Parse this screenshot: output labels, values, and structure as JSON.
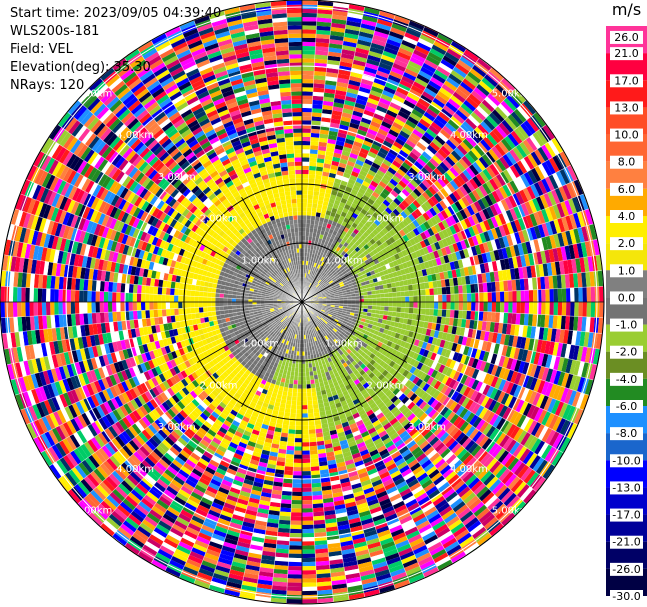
{
  "info": {
    "start_time": "Start time: 2023/09/05 04:39:40",
    "instrument": "WLS200s-181",
    "field": "Field: VEL",
    "elevation": "Elevation(deg): 35.30",
    "nrays": "NRays: 120"
  },
  "colorbar": {
    "unit": "m/s",
    "bins": [
      {
        "label": "26.0",
        "color": "#ff3399"
      },
      {
        "label": "21.0",
        "color": "#ff0040"
      },
      {
        "label": "17.0",
        "color": "#ff1a1a"
      },
      {
        "label": "13.0",
        "color": "#ff4d26"
      },
      {
        "label": "10.0",
        "color": "#ff6633"
      },
      {
        "label": "8.0",
        "color": "#ff8040"
      },
      {
        "label": "6.0",
        "color": "#ffaa00"
      },
      {
        "label": "4.0",
        "color": "#ffee00"
      },
      {
        "label": "2.0",
        "color": "#f5e60a"
      },
      {
        "label": "1.0",
        "color": "#808080"
      },
      {
        "label": "0.0",
        "color": "#737373"
      },
      {
        "label": "-1.0",
        "color": "#9acd32"
      },
      {
        "label": "-2.0",
        "color": "#6b8e23"
      },
      {
        "label": "-4.0",
        "color": "#228b22"
      },
      {
        "label": "-6.0",
        "color": "#1e90ff"
      },
      {
        "label": "-8.0",
        "color": "#1a66cc"
      },
      {
        "label": "-10.0",
        "color": "#0000ff"
      },
      {
        "label": "-13.0",
        "color": "#0000cc"
      },
      {
        "label": "-17.0",
        "color": "#000099"
      },
      {
        "label": "-21.0",
        "color": "#000066"
      },
      {
        "label": "-26.0",
        "color": "#000044"
      },
      {
        "label": "-30.0",
        "color": ""
      }
    ]
  },
  "chart_data": {
    "type": "heatmap",
    "projection": "polar-ppi",
    "n_rays": 120,
    "field": "VEL",
    "units": "m/s",
    "range_ring_labels_km": [
      "1.00km",
      "2.00km",
      "3.00km",
      "4.00km",
      "5.00km"
    ],
    "crosshair": true,
    "pattern": {
      "inner_radius_km": 1.0,
      "inner_values_ms": [
        -1.0,
        0.0,
        1.0
      ],
      "mid_radius_km": 2.2,
      "mid_sector_north_west_ms": 2.0,
      "mid_sector_east_south_ms": -1.0,
      "outer_region": "noise across full colormap"
    }
  }
}
